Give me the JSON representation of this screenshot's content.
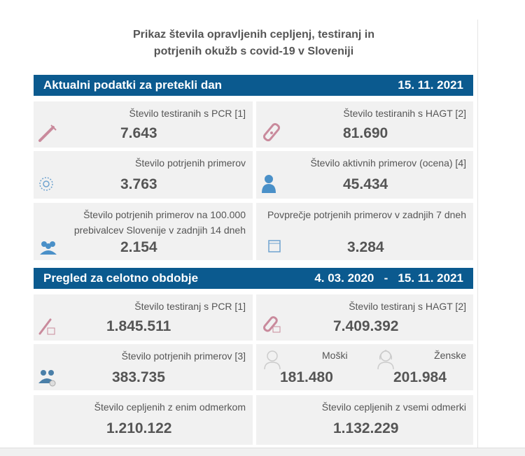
{
  "title_line1": "Prikaz števila opravljenih cepljenj, testiranj in",
  "title_line2": "potrjenih okužb s covid-19 v Sloveniji",
  "daily": {
    "heading": "Aktualni podatki za pretekli dan",
    "date": "15. 11. 2021",
    "cards": [
      {
        "label": "Število testiranih s PCR [1]",
        "value": "7.643",
        "icon": "test-tube-icon"
      },
      {
        "label": "Število testiranih s HAGT [2]",
        "value": "81.690",
        "icon": "rapid-test-icon"
      },
      {
        "label": "Število potrjenih primerov",
        "value": "3.763",
        "icon": "virus-icon"
      },
      {
        "label": "Število aktivnih primerov (ocena) [4]",
        "value": "45.434",
        "icon": "person-icon"
      },
      {
        "label": "Število potrjenih primerov na 100.000 prebivalcev Slovenije v zadnjih 14 dneh",
        "value": "2.154",
        "icon": "people-icon"
      },
      {
        "label": "Povprečje potrjenih primerov v zadnjih 7 dneh",
        "value": "3.284",
        "icon": "calendar-icon"
      }
    ]
  },
  "total": {
    "heading": "Pregled za celotno obdobje",
    "date_from": "4. 03. 2020",
    "dash": "-",
    "date_to": "15. 11. 2021",
    "cards": [
      {
        "label": "Število testiranj s PCR [1]",
        "value": "1.845.511",
        "icon": "test-tube-icon"
      },
      {
        "label": "Število testiranj s HAGT [2]",
        "value": "7.409.392",
        "icon": "rapid-test-icon"
      },
      {
        "label": "Število potrjenih primerov [3]",
        "value": "383.735",
        "icon": "people-icon"
      },
      {
        "label_m": "Moški",
        "value_m": "181.480",
        "label_f": "Ženske",
        "value_f": "201.984"
      },
      {
        "label": "Število cepljenih z enim odmerkom",
        "value": "1.210.122"
      },
      {
        "label": "Število cepljenih z vsemi odmerki",
        "value": "1.132.229"
      }
    ]
  },
  "colors": {
    "bar": "#0b5a8f",
    "card": "#f1f1f1",
    "pink": "#c98a9c",
    "blue": "#4a90c8"
  }
}
